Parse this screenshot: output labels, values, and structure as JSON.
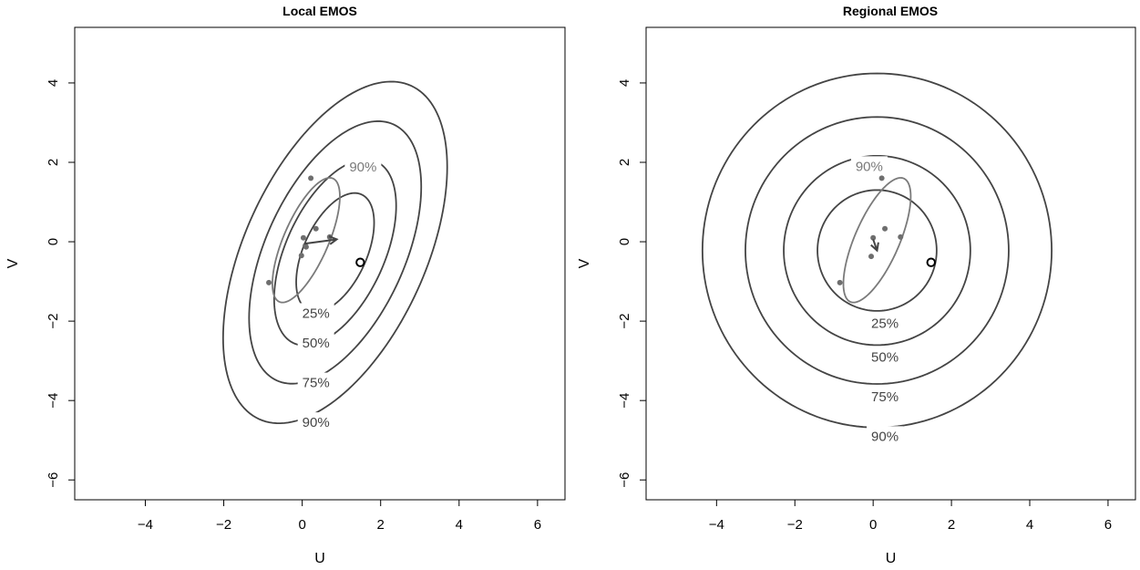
{
  "chart_data": [
    {
      "type": "contour",
      "title": "Local EMOS",
      "xlabel": "U",
      "ylabel": "V",
      "xlim": [
        -5.8,
        6.7
      ],
      "ylim": [
        -6.5,
        5.4
      ],
      "xticks": [
        -4,
        -2,
        0,
        2,
        4,
        6
      ],
      "yticks": [
        -6,
        -4,
        -2,
        0,
        2,
        4
      ],
      "xtick_labels": [
        "−4",
        "−2",
        "0",
        "2",
        "4",
        "6"
      ],
      "ytick_labels": [
        "−6",
        "−4",
        "−2",
        "0",
        "2",
        "4"
      ],
      "grid": false,
      "predictive_contours": [
        {
          "label": "25%",
          "center": [
            0.84,
            -0.27
          ],
          "sx": 0.77,
          "sy": 1.16,
          "rho": 0.5,
          "r": 1.29
        },
        {
          "label": "50%",
          "center": [
            0.84,
            -0.27
          ],
          "sx": 0.77,
          "sy": 1.16,
          "rho": 0.5,
          "r": 2.02
        },
        {
          "label": "75%",
          "center": [
            0.84,
            -0.27
          ],
          "sx": 0.77,
          "sy": 1.16,
          "rho": 0.5,
          "r": 2.85
        },
        {
          "label": "90%",
          "center": [
            0.84,
            -0.27
          ],
          "sx": 0.77,
          "sy": 1.16,
          "rho": 0.5,
          "r": 3.71
        }
      ],
      "contour_label_positions": [
        [
          0.35,
          -1.8
        ],
        [
          0.35,
          -2.55
        ],
        [
          0.35,
          -3.55
        ],
        [
          0.35,
          -4.55
        ]
      ],
      "ensemble_ellipse": {
        "label": "90%",
        "label_position": [
          1.55,
          1.88
        ],
        "center": [
          0.1,
          0.04
        ],
        "sx": 0.4,
        "sy": 0.73,
        "rho": 0.7,
        "r": 2.15
      },
      "ensemble_members": [
        [
          -0.85,
          -1.03
        ],
        [
          0.22,
          1.6
        ],
        [
          0.35,
          0.33
        ],
        [
          0.03,
          0.1
        ],
        [
          0.08,
          -0.1
        ],
        [
          0.1,
          -0.13
        ],
        [
          -0.02,
          -0.35
        ],
        [
          0.7,
          0.12
        ]
      ],
      "arrow": {
        "from": [
          0.05,
          -0.05
        ],
        "to": [
          0.88,
          0.06
        ]
      },
      "observation": [
        1.48,
        -0.52
      ]
    },
    {
      "type": "contour",
      "title": "Regional EMOS",
      "xlabel": "U",
      "ylabel": "V",
      "xlim": [
        -5.8,
        6.7
      ],
      "ylim": [
        -6.5,
        5.4
      ],
      "xticks": [
        -4,
        -2,
        0,
        2,
        4,
        6
      ],
      "yticks": [
        -6,
        -4,
        -2,
        0,
        2,
        4
      ],
      "xtick_labels": [
        "−4",
        "−2",
        "0",
        "2",
        "4",
        "6"
      ],
      "ytick_labels": [
        "−6",
        "−4",
        "−2",
        "0",
        "2",
        "4"
      ],
      "grid": false,
      "predictive_contours": [
        {
          "label": "25%",
          "center": [
            0.1,
            -0.22
          ],
          "sx": 1.18,
          "sy": 1.18,
          "rho": 0.0,
          "r": 1.29
        },
        {
          "label": "50%",
          "center": [
            0.1,
            -0.22
          ],
          "sx": 1.18,
          "sy": 1.18,
          "rho": 0.0,
          "r": 2.02
        },
        {
          "label": "75%",
          "center": [
            0.1,
            -0.22
          ],
          "sx": 1.18,
          "sy": 1.18,
          "rho": 0.0,
          "r": 2.85
        },
        {
          "label": "90%",
          "center": [
            0.1,
            -0.22
          ],
          "sx": 1.18,
          "sy": 1.18,
          "rho": 0.0,
          "r": 3.78
        }
      ],
      "contour_label_positions": [
        [
          0.3,
          -2.05
        ],
        [
          0.3,
          -2.9
        ],
        [
          0.3,
          -3.9
        ],
        [
          0.3,
          -4.9
        ]
      ],
      "ensemble_ellipse": {
        "label": "90%",
        "label_position": [
          -0.1,
          1.9
        ],
        "center": [
          0.1,
          0.04
        ],
        "sx": 0.4,
        "sy": 0.73,
        "rho": 0.7,
        "r": 2.15
      },
      "ensemble_members": [
        [
          -0.85,
          -1.03
        ],
        [
          0.22,
          1.6
        ],
        [
          0.3,
          0.33
        ],
        [
          0.0,
          0.1
        ],
        [
          0.7,
          0.12
        ],
        [
          -0.05,
          -0.37
        ]
      ],
      "arrow": {
        "from": [
          0.0,
          0.06
        ],
        "to": [
          0.1,
          -0.22
        ]
      },
      "observation": [
        1.48,
        -0.52
      ]
    }
  ]
}
